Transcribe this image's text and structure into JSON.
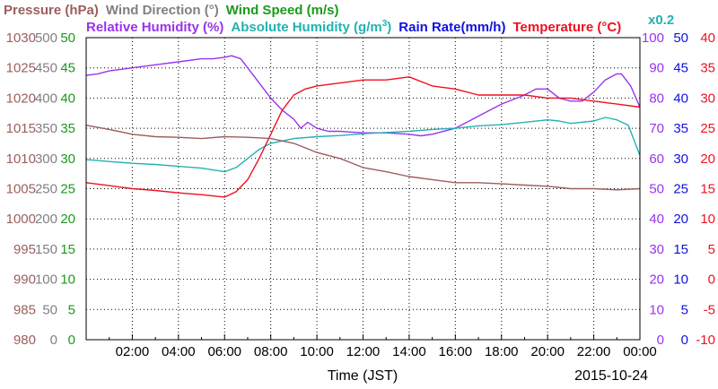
{
  "chart_data": {
    "type": "line",
    "title": "",
    "date": "2015-10-24",
    "xlabel": "Time (JST)",
    "x_tick_labels": [
      "02:00",
      "04:00",
      "06:00",
      "08:00",
      "10:00",
      "12:00",
      "14:00",
      "16:00",
      "18:00",
      "20:00",
      "22:00",
      "00:00"
    ],
    "x_range_hours": [
      0,
      24
    ],
    "grid": true,
    "legend_row1": [
      {
        "text": "Pressure (hPa)",
        "color": "#9b5e5e"
      },
      {
        "text": "Wind Direction (°)",
        "color": "#808080"
      },
      {
        "text": "Wind Speed (m/s)",
        "color": "#1a9a1a"
      }
    ],
    "legend_row2": [
      {
        "text": "Relative Humidity (%)",
        "color": "#9933ee"
      },
      {
        "text": "Absolute Humidity (g/m",
        "sup": "3",
        "close": ")",
        "color": "#22b2b2"
      },
      {
        "text": "Rain Rate(mm/h)",
        "color": "#1111dd"
      },
      {
        "text": "Temperature (°C)",
        "color": "#ee1122"
      }
    ],
    "rain_multiplier_label": "x0.2",
    "axes": [
      {
        "name": "Pressure (hPa)",
        "color": "#9b5e5e",
        "range": [
          980,
          1030
        ],
        "ticks": [
          "980",
          "985",
          "990",
          "995",
          "1000",
          "1005",
          "1010",
          "1015",
          "1020",
          "1025",
          "1030"
        ]
      },
      {
        "name": "Wind Direction (°)",
        "color": "#808080",
        "range": [
          0,
          500
        ],
        "ticks": [
          "0",
          "50",
          "100",
          "150",
          "200",
          "250",
          "300",
          "350",
          "400",
          "450",
          "500"
        ]
      },
      {
        "name": "Wind Speed (m/s)",
        "color": "#1a9a1a",
        "range": [
          0,
          50
        ],
        "ticks": [
          "0",
          "5",
          "10",
          "15",
          "20",
          "25",
          "30",
          "35",
          "40",
          "45",
          "50"
        ]
      },
      {
        "name": "Relative Humidity (%)",
        "color": "#9933ee",
        "range": [
          0,
          100
        ],
        "ticks": [
          "0",
          "10",
          "20",
          "30",
          "40",
          "50",
          "60",
          "70",
          "80",
          "90",
          "100"
        ]
      },
      {
        "name": "Rain Rate(mm/h)",
        "color": "#1111dd",
        "range": [
          0,
          50
        ],
        "ticks": [
          "0",
          "5",
          "10",
          "15",
          "20",
          "25",
          "30",
          "35",
          "40",
          "45",
          "50"
        ]
      },
      {
        "name": "Temperature (°C)",
        "color": "#ee1122",
        "range": [
          -10,
          40
        ],
        "ticks": [
          "-10",
          "-5",
          "0",
          "5",
          "10",
          "15",
          "20",
          "25",
          "30",
          "35",
          "40"
        ]
      }
    ],
    "series": [
      {
        "name": "Relative Humidity (%)",
        "color": "#9933ee",
        "axis": 3,
        "points": [
          [
            0,
            87.5
          ],
          [
            0.5,
            88
          ],
          [
            1,
            89
          ],
          [
            2,
            90
          ],
          [
            3,
            91
          ],
          [
            4,
            92
          ],
          [
            5,
            93
          ],
          [
            5.5,
            93
          ],
          [
            6,
            93.5
          ],
          [
            6.3,
            94
          ],
          [
            6.7,
            93
          ],
          [
            7,
            90
          ],
          [
            7.5,
            85
          ],
          [
            8,
            80
          ],
          [
            8.5,
            76
          ],
          [
            9,
            73
          ],
          [
            9.3,
            70
          ],
          [
            9.6,
            72
          ],
          [
            10,
            70
          ],
          [
            10.5,
            69
          ],
          [
            11,
            69
          ],
          [
            12,
            68.5
          ],
          [
            13,
            68.5
          ],
          [
            14,
            68
          ],
          [
            14.5,
            67.5
          ],
          [
            15,
            68
          ],
          [
            16,
            70
          ],
          [
            16.5,
            72
          ],
          [
            17,
            74
          ],
          [
            18,
            78
          ],
          [
            19,
            81
          ],
          [
            19.5,
            83
          ],
          [
            20,
            83
          ],
          [
            20.5,
            80
          ],
          [
            21,
            79
          ],
          [
            21.5,
            79
          ],
          [
            22,
            82
          ],
          [
            22.5,
            86
          ],
          [
            23,
            88
          ],
          [
            23.2,
            88
          ],
          [
            23.6,
            84
          ],
          [
            24,
            77
          ]
        ]
      },
      {
        "name": "Absolute Humidity (g/m3)",
        "color": "#22b2b2",
        "axis": 1,
        "points": [
          [
            0,
            298
          ],
          [
            1,
            295
          ],
          [
            2,
            292
          ],
          [
            3,
            290
          ],
          [
            4,
            287
          ],
          [
            5,
            284
          ],
          [
            6,
            278
          ],
          [
            6.5,
            285
          ],
          [
            7,
            300
          ],
          [
            7.5,
            315
          ],
          [
            8,
            325
          ],
          [
            9,
            333
          ],
          [
            10,
            336
          ],
          [
            11,
            338
          ],
          [
            12,
            341
          ],
          [
            13,
            343
          ],
          [
            14,
            345
          ],
          [
            15,
            348
          ],
          [
            16,
            350
          ],
          [
            17,
            354
          ],
          [
            18,
            356
          ],
          [
            19,
            360
          ],
          [
            20,
            364
          ],
          [
            20.5,
            362
          ],
          [
            21,
            358
          ],
          [
            22,
            362
          ],
          [
            22.5,
            368
          ],
          [
            23,
            364
          ],
          [
            23.5,
            355
          ],
          [
            24,
            305
          ]
        ]
      },
      {
        "name": "Temperature (°C)",
        "color": "#ee1122",
        "axis": 5,
        "points": [
          [
            0,
            16
          ],
          [
            1,
            15.5
          ],
          [
            2,
            15
          ],
          [
            3,
            14.7
          ],
          [
            4,
            14.3
          ],
          [
            5,
            14
          ],
          [
            6,
            13.6
          ],
          [
            6.5,
            14.5
          ],
          [
            7,
            16.5
          ],
          [
            7.5,
            20
          ],
          [
            8,
            24
          ],
          [
            8.5,
            28
          ],
          [
            9,
            30.5
          ],
          [
            9.5,
            31.5
          ],
          [
            10,
            32
          ],
          [
            11,
            32.5
          ],
          [
            12,
            33
          ],
          [
            13,
            33
          ],
          [
            14,
            33.5
          ],
          [
            15,
            32
          ],
          [
            16,
            31.5
          ],
          [
            17,
            30.5
          ],
          [
            18,
            30.5
          ],
          [
            19,
            30.5
          ],
          [
            20,
            30
          ],
          [
            21,
            30
          ],
          [
            22,
            29.5
          ],
          [
            23,
            29
          ],
          [
            24,
            28.5
          ]
        ]
      },
      {
        "name": "Pressure (hPa)",
        "color": "#9b5e5e",
        "axis": 0,
        "points": [
          [
            0,
            1015.5
          ],
          [
            1,
            1014.8
          ],
          [
            2,
            1014
          ],
          [
            3,
            1013.6
          ],
          [
            4,
            1013.5
          ],
          [
            5,
            1013.3
          ],
          [
            6,
            1013.6
          ],
          [
            7,
            1013.5
          ],
          [
            8,
            1013.3
          ],
          [
            9,
            1012.5
          ],
          [
            10,
            1011
          ],
          [
            11,
            1010
          ],
          [
            12,
            1008.5
          ],
          [
            13,
            1007.8
          ],
          [
            14,
            1007
          ],
          [
            15,
            1006.5
          ],
          [
            16,
            1006
          ],
          [
            17,
            1006
          ],
          [
            18,
            1005.8
          ],
          [
            19,
            1005.6
          ],
          [
            20,
            1005.4
          ],
          [
            21,
            1005
          ],
          [
            22,
            1005
          ],
          [
            23,
            1004.8
          ],
          [
            24,
            1005
          ]
        ]
      }
    ]
  }
}
